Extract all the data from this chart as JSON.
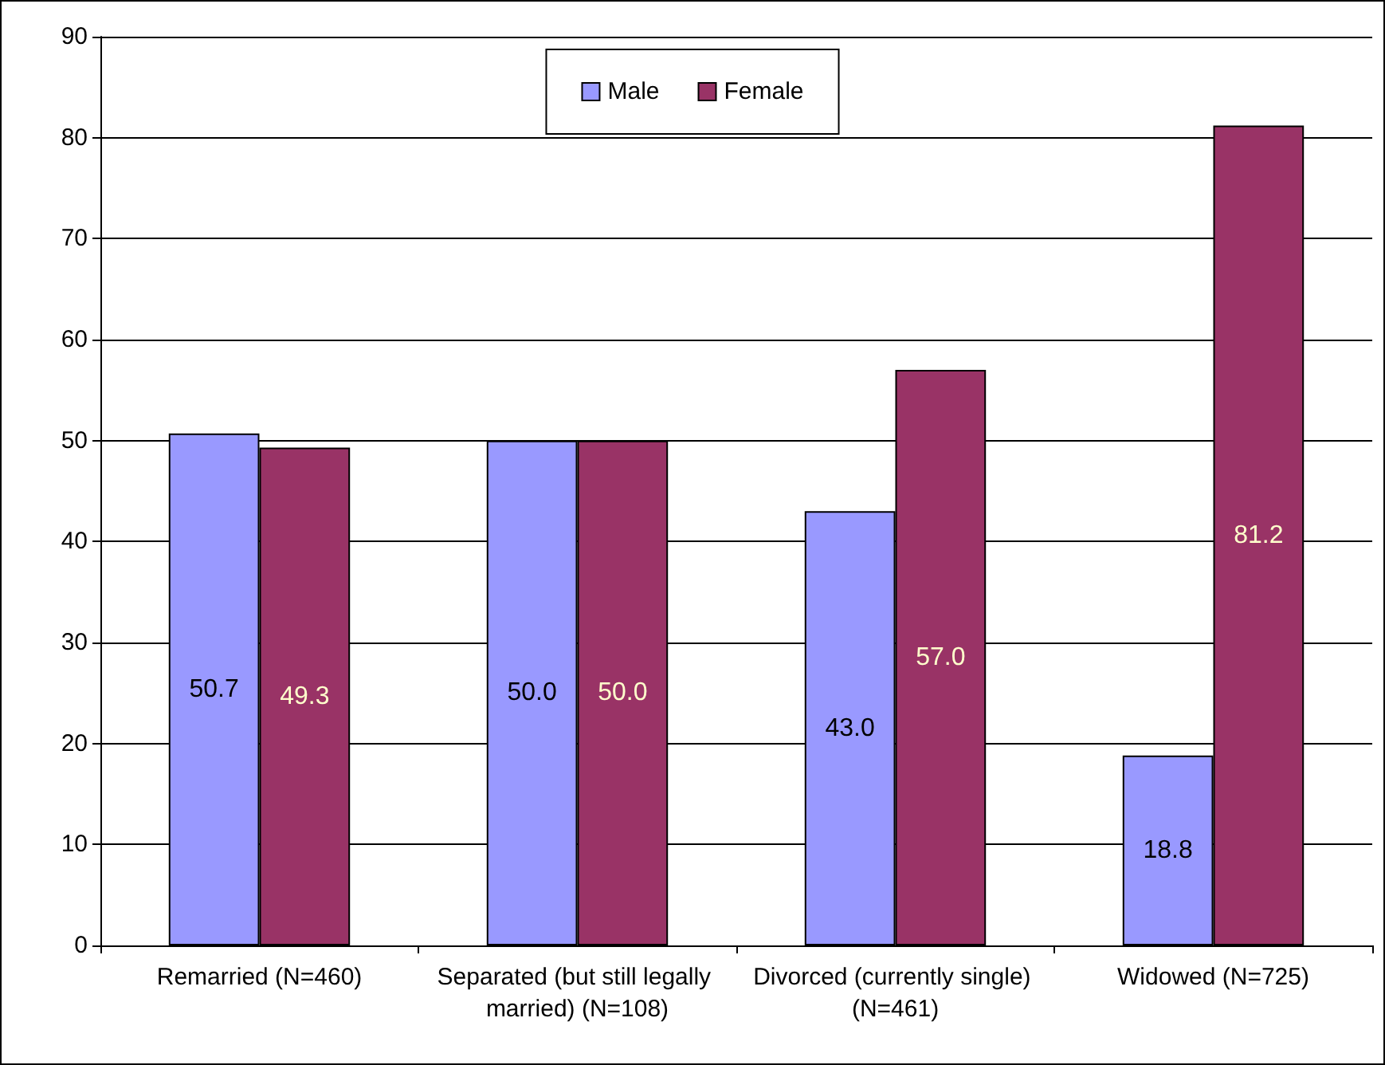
{
  "chart_data": {
    "type": "bar",
    "categories": [
      "Remarried (N=460)",
      "Separated (but still legally married) (N=108)",
      "Divorced (currently single) (N=461)",
      "Widowed (N=725)"
    ],
    "series": [
      {
        "name": "Male",
        "color": "#9999ff",
        "values": [
          50.7,
          50.0,
          43.0,
          18.8
        ],
        "value_labels": [
          "50.7",
          "50.0",
          "43.0",
          "18.8"
        ]
      },
      {
        "name": "Female",
        "color": "#993366",
        "values": [
          49.3,
          50.0,
          57.0,
          81.2
        ],
        "value_labels": [
          "49.3",
          "50.0",
          "57.0",
          "81.2"
        ]
      }
    ],
    "ylim": [
      0,
      90
    ],
    "yticks": [
      0,
      10,
      20,
      30,
      40,
      50,
      60,
      70,
      80,
      90
    ],
    "grid": "y",
    "legend": "top"
  }
}
